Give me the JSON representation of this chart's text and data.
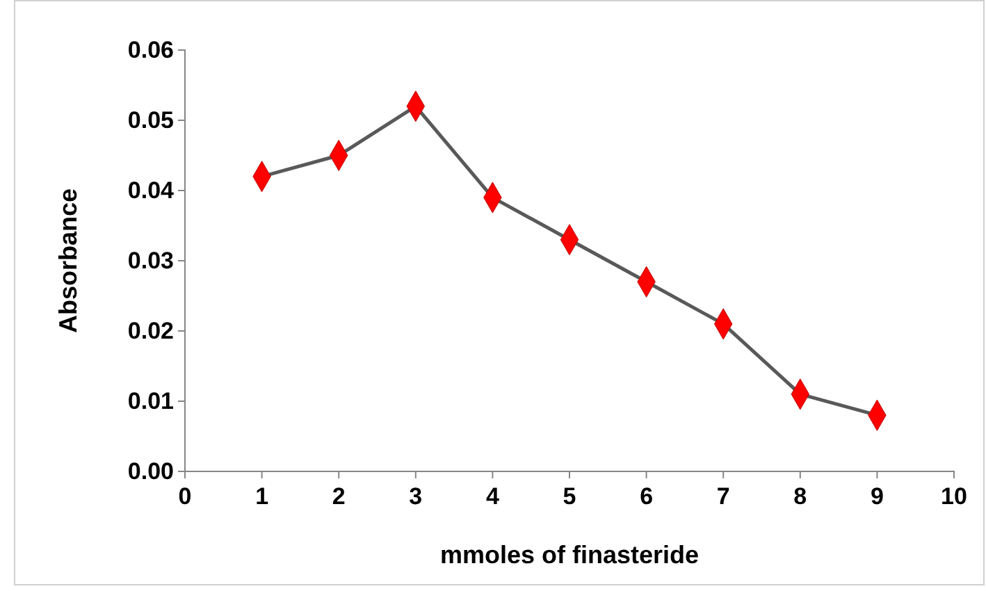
{
  "chart_data": {
    "type": "line",
    "xlabel": "mmoles of finasteride",
    "ylabel": "Absorbance",
    "x": [
      1,
      2,
      3,
      4,
      5,
      6,
      7,
      8,
      9
    ],
    "series": [
      {
        "color": "#ff0000",
        "values": [
          0.042,
          0.045,
          0.052,
          0.039,
          0.033,
          0.027,
          0.021,
          0.011,
          0.008
        ]
      }
    ],
    "xlim": [
      0,
      10
    ],
    "xticks": [
      0,
      1,
      2,
      3,
      4,
      5,
      6,
      7,
      8,
      9,
      10
    ],
    "ylim": [
      0,
      0.06
    ],
    "yticks": [
      {
        "value": 0,
        "label": "0.00"
      },
      {
        "value": 0.01,
        "label": "0.01"
      },
      {
        "value": 0.02,
        "label": "0.02"
      },
      {
        "value": 0.03,
        "label": "0.03"
      },
      {
        "value": 0.04,
        "label": "0.04"
      },
      {
        "value": 0.05,
        "label": "0.05"
      },
      {
        "value": 0.06,
        "label": "0.06"
      }
    ],
    "marker": "diamond",
    "line_style": "solid",
    "grid": false,
    "legend": false
  }
}
